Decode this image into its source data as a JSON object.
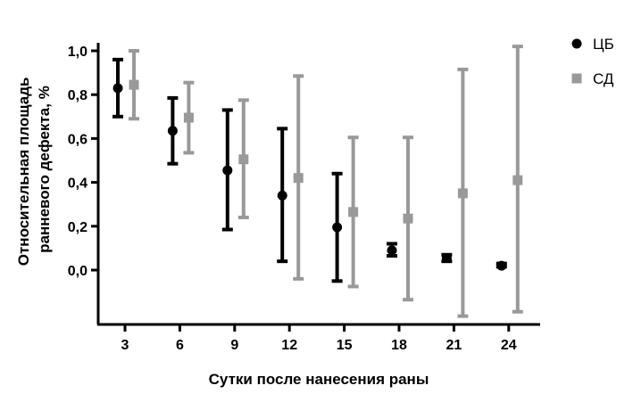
{
  "chart_data": {
    "type": "scatter",
    "xlabel": "Сутки после нанесения раны",
    "ylabel_lines": [
      "Относительная площадь",
      "ранневого дефекта, %"
    ],
    "x_ticks": [
      "3",
      "6",
      "9",
      "12",
      "15",
      "18",
      "21",
      "24"
    ],
    "y_ticks": [
      "1,0",
      "0,8",
      "0,6",
      "0,4",
      "0,2",
      "0,0"
    ],
    "ylim": [
      -0.22,
      1.1
    ],
    "grid": false,
    "legend_position": "top-right",
    "series": [
      {
        "name": "ЦБ",
        "color": "#000000",
        "marker": "circle",
        "x": [
          3,
          6,
          9,
          12,
          15,
          18,
          21,
          24
        ],
        "y": [
          0.83,
          0.635,
          0.455,
          0.34,
          0.195,
          0.09,
          0.055,
          0.02
        ],
        "err_low": [
          0.7,
          0.485,
          0.185,
          0.04,
          -0.05,
          0.065,
          0.04,
          0.015
        ],
        "err_high": [
          0.96,
          0.785,
          0.73,
          0.645,
          0.44,
          0.12,
          0.07,
          0.03
        ]
      },
      {
        "name": "СД",
        "color": "#999999",
        "marker": "square",
        "x": [
          3,
          6,
          9,
          12,
          15,
          18,
          21,
          24
        ],
        "y": [
          0.845,
          0.695,
          0.505,
          0.42,
          0.265,
          0.235,
          0.35,
          0.41
        ],
        "err_low": [
          0.69,
          0.535,
          0.24,
          -0.04,
          -0.075,
          -0.135,
          -0.21,
          -0.19
        ],
        "err_high": [
          1.0,
          0.855,
          0.775,
          0.885,
          0.605,
          0.605,
          0.915,
          1.02
        ]
      }
    ]
  }
}
